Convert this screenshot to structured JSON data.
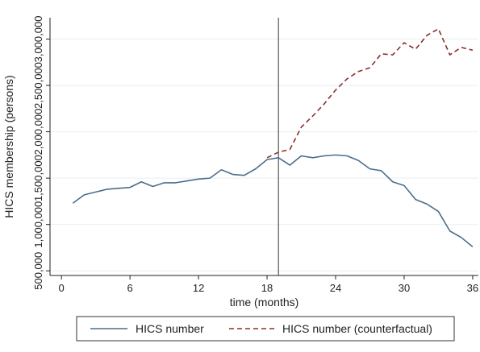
{
  "chart_data": {
    "type": "line",
    "xlabel": "time (months)",
    "ylabel": "HICS membership (persons)",
    "xlim": [
      -1,
      36.5
    ],
    "ylim": [
      450000,
      3230000
    ],
    "xticks": [
      0,
      6,
      12,
      18,
      24,
      30,
      36
    ],
    "xtick_labels": [
      "0",
      "6",
      "12",
      "18",
      "24",
      "30",
      "36"
    ],
    "yticks": [
      500000,
      1000000,
      1500000,
      2000000,
      2500000,
      3000000
    ],
    "ytick_labels": [
      "500,000",
      "1,000,000",
      "1,500,000",
      "2,000,000",
      "2,500,000",
      "3,000,000"
    ],
    "reference_line_x": 19,
    "grid": true,
    "legend_position": "bottom",
    "series": [
      {
        "name": "HICS number",
        "color": "#4a6e8c",
        "style": "solid",
        "x": [
          1,
          2,
          3,
          4,
          5,
          6,
          7,
          8,
          9,
          10,
          11,
          12,
          13,
          14,
          15,
          16,
          17,
          18,
          19,
          20,
          21,
          22,
          23,
          24,
          25,
          26,
          27,
          28,
          29,
          30,
          31,
          32,
          33,
          34,
          35,
          36
        ],
        "y": [
          1230000,
          1320000,
          1350000,
          1380000,
          1390000,
          1400000,
          1460000,
          1410000,
          1450000,
          1450000,
          1470000,
          1490000,
          1500000,
          1590000,
          1540000,
          1530000,
          1600000,
          1700000,
          1720000,
          1640000,
          1740000,
          1720000,
          1740000,
          1750000,
          1740000,
          1690000,
          1600000,
          1580000,
          1460000,
          1420000,
          1270000,
          1220000,
          1140000,
          930000,
          860000,
          760000
        ]
      },
      {
        "name": "HICS number (counterfactual)",
        "color": "#8b2e2e",
        "style": "dashed",
        "x": [
          18,
          19,
          20,
          21,
          22,
          23,
          24,
          25,
          26,
          27,
          28,
          29,
          30,
          31,
          32,
          33,
          34,
          35,
          36
        ],
        "y": [
          1720000,
          1780000,
          1810000,
          2050000,
          2170000,
          2300000,
          2450000,
          2570000,
          2650000,
          2690000,
          2840000,
          2830000,
          2960000,
          2890000,
          3040000,
          3110000,
          2830000,
          2910000,
          2880000
        ]
      }
    ]
  },
  "colors": {
    "background": "#ffffff",
    "plot_area": "#ffffff",
    "grid": "#e7eff4",
    "axis": "#222222",
    "reference_line": "#555555"
  }
}
